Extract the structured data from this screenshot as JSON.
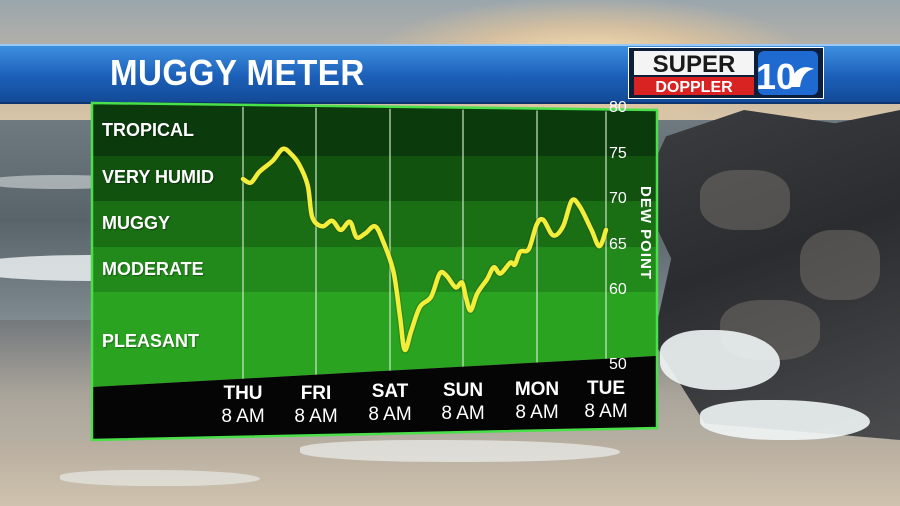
{
  "title": "MUGGY METER",
  "logo": {
    "line1": "SUPER",
    "line2": "DOPPLER",
    "number": "10"
  },
  "colors": {
    "title_bar": "#1c5fb8",
    "trace": "#f2ee3a",
    "frame": "#4ae04a",
    "band_tropical": "#0b3a0d",
    "band_very_humid": "#11520f",
    "band_muggy": "#1a6e14",
    "band_moderate": "#228a1b",
    "band_pleasant": "#2aa321"
  },
  "chart_data": {
    "type": "line",
    "title": "MUGGY METER",
    "xlabel": "",
    "ylabel": "DEW POINT",
    "ylim": [
      50,
      80
    ],
    "y_ticks": [
      80,
      75,
      70,
      65,
      60,
      50
    ],
    "categories": [
      "Thu 8 AM",
      "Fri 8 AM",
      "Sat 8 AM",
      "Sun 8 AM",
      "Mon 8 AM",
      "Tue 8 AM"
    ],
    "x_labels": [
      {
        "day": "THU",
        "time": "8 AM"
      },
      {
        "day": "FRI",
        "time": "8 AM"
      },
      {
        "day": "SAT",
        "time": "8 AM"
      },
      {
        "day": "SUN",
        "time": "8 AM"
      },
      {
        "day": "MON",
        "time": "8 AM"
      },
      {
        "day": "TUE",
        "time": "8 AM"
      }
    ],
    "bands": [
      {
        "label": "TROPICAL",
        "from": 75,
        "to": 80
      },
      {
        "label": "VERY HUMID",
        "from": 70,
        "to": 75
      },
      {
        "label": "MUGGY",
        "from": 65,
        "to": 70
      },
      {
        "label": "MODERATE",
        "from": 60,
        "to": 65
      },
      {
        "label": "PLEASANT",
        "from": 50,
        "to": 60
      }
    ],
    "x_range": [
      0,
      5.5
    ],
    "series": [
      {
        "x": [
          0,
          0.12,
          0.25,
          0.45,
          0.6,
          0.72,
          0.85,
          0.98,
          1.05,
          1.2,
          1.35,
          1.48,
          1.62,
          1.72,
          1.85,
          2.0,
          2.12,
          2.28,
          2.38,
          2.45,
          2.55,
          2.68,
          2.85,
          2.98,
          3.08,
          3.22,
          3.32,
          3.38,
          3.45,
          3.55,
          3.7,
          3.8,
          3.9,
          4.05,
          4.12,
          4.2,
          4.33,
          4.45,
          4.55,
          4.7,
          4.85,
          4.98,
          5.1,
          5.28,
          5.4,
          5.5
        ],
        "y": [
          72.2,
          71.8,
          73.0,
          74.2,
          75.5,
          75.0,
          73.8,
          71.5,
          68.0,
          67.0,
          67.6,
          66.6,
          67.5,
          65.8,
          66.2,
          67.0,
          65.4,
          62.0,
          56.0,
          51.2,
          54.0,
          57.5,
          59.0,
          61.8,
          61.6,
          60.3,
          60.8,
          58.8,
          57.0,
          59.5,
          61.2,
          62.5,
          61.8,
          63.0,
          62.8,
          64.2,
          64.5,
          67.2,
          67.7,
          66.0,
          67.0,
          69.8,
          69.2,
          66.6,
          64.8,
          66.6
        ]
      }
    ],
    "grid": true,
    "legend": "none"
  }
}
